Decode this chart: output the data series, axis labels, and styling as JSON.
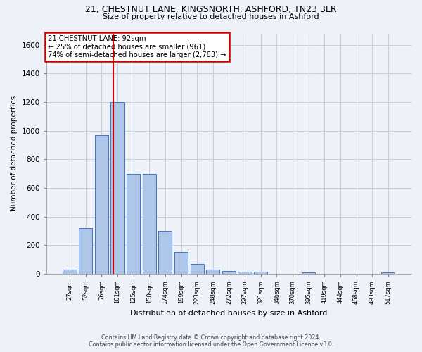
{
  "title_line1": "21, CHESTNUT LANE, KINGSNORTH, ASHFORD, TN23 3LR",
  "title_line2": "Size of property relative to detached houses in Ashford",
  "xlabel": "Distribution of detached houses by size in Ashford",
  "ylabel": "Number of detached properties",
  "bar_labels": [
    "27sqm",
    "52sqm",
    "76sqm",
    "101sqm",
    "125sqm",
    "150sqm",
    "174sqm",
    "199sqm",
    "223sqm",
    "248sqm",
    "272sqm",
    "297sqm",
    "321sqm",
    "346sqm",
    "370sqm",
    "395sqm",
    "419sqm",
    "444sqm",
    "468sqm",
    "493sqm",
    "517sqm"
  ],
  "bar_values": [
    30,
    320,
    970,
    1200,
    700,
    700,
    300,
    150,
    70,
    30,
    20,
    15,
    15,
    0,
    0,
    10,
    0,
    0,
    0,
    0,
    10
  ],
  "bar_color": "#aec6e8",
  "bar_edge_color": "#4472c4",
  "annotation_text_line1": "21 CHESTNUT LANE: 92sqm",
  "annotation_text_line2": "← 25% of detached houses are smaller (961)",
  "annotation_text_line3": "74% of semi-detached houses are larger (2,783) →",
  "annotation_box_color": "#ffffff",
  "annotation_box_edge_color": "#cc0000",
  "vline_color": "#cc0000",
  "vline_x": 2.72,
  "ylim": [
    0,
    1680
  ],
  "yticks": [
    0,
    200,
    400,
    600,
    800,
    1000,
    1200,
    1400,
    1600
  ],
  "grid_color": "#c8d0dc",
  "background_color": "#eef2f8",
  "footer_line1": "Contains HM Land Registry data © Crown copyright and database right 2024.",
  "footer_line2": "Contains public sector information licensed under the Open Government Licence v3.0."
}
